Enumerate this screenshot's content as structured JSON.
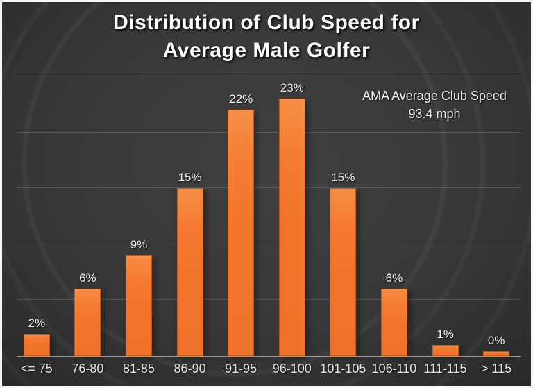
{
  "title": {
    "line1": "Distribution of Club Speed for",
    "line2": "Average Male Golfer"
  },
  "annotation": {
    "line1": "AMA Average Club Speed",
    "line2": "93.4 mph"
  },
  "chart_data": {
    "type": "bar",
    "title": "Distribution of Club Speed for Average Male Golfer",
    "categories": [
      "<= 75",
      "76-80",
      "81-85",
      "86-90",
      "91-95",
      "96-100",
      "101-105",
      "106-110",
      "111-115",
      "> 115"
    ],
    "values": [
      2,
      6,
      9,
      15,
      22,
      23,
      15,
      6,
      1,
      0
    ],
    "data_labels": [
      "2%",
      "6%",
      "9%",
      "15%",
      "22%",
      "23%",
      "15%",
      "6%",
      "1%",
      "0%"
    ],
    "annotation": "AMA Average Club Speed 93.4 mph",
    "xlabel": "",
    "ylabel": "",
    "ylim": [
      0,
      25
    ],
    "gridline_interval": 5,
    "grid": "on",
    "legend": "none",
    "y_tick_labels_visible": false
  },
  "colors": {
    "background": "#333333",
    "bar_fill": "#F0742A",
    "bar_fill_light": "#F78E47",
    "bar_border": "#B0500F",
    "text": "#F2F2F2",
    "axis_line": "#9C9C9C",
    "gridline": "rgba(255,255,255,0.15)",
    "frame_border": "#F5F5F5"
  }
}
